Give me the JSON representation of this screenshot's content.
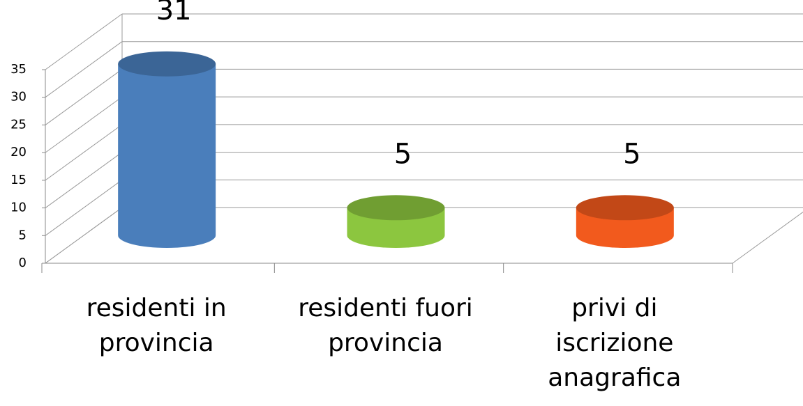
{
  "chart_data": {
    "type": "bar3d",
    "categories": [
      "residenti in provincia",
      "residenti fuori provincia",
      "privi di iscrizione anagrafica"
    ],
    "values": [
      31,
      5,
      5
    ],
    "colors": [
      "#4a7ebb",
      "#8cc63f",
      "#f25a1d"
    ],
    "ylim": [
      0,
      35
    ],
    "yticks": [
      0,
      5,
      10,
      15,
      20,
      25,
      30,
      35
    ],
    "grid": true
  }
}
